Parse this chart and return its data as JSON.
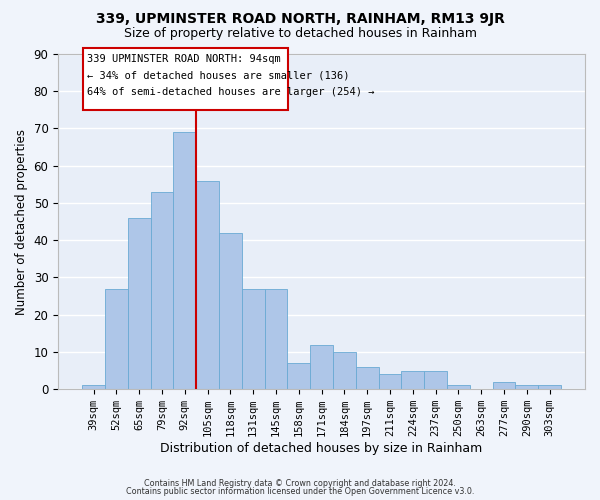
{
  "title": "339, UPMINSTER ROAD NORTH, RAINHAM, RM13 9JR",
  "subtitle": "Size of property relative to detached houses in Rainham",
  "xlabel": "Distribution of detached houses by size in Rainham",
  "ylabel": "Number of detached properties",
  "bar_color": "#aec6e8",
  "bar_edge_color": "#6aaad4",
  "background_color": "#e8eef8",
  "grid_color": "#ffffff",
  "categories": [
    "39sqm",
    "52sqm",
    "65sqm",
    "79sqm",
    "92sqm",
    "105sqm",
    "118sqm",
    "131sqm",
    "145sqm",
    "158sqm",
    "171sqm",
    "184sqm",
    "197sqm",
    "211sqm",
    "224sqm",
    "237sqm",
    "250sqm",
    "263sqm",
    "277sqm",
    "290sqm",
    "303sqm"
  ],
  "values": [
    1,
    27,
    46,
    53,
    69,
    56,
    42,
    27,
    27,
    7,
    12,
    10,
    6,
    4,
    5,
    5,
    1,
    0,
    2,
    1,
    1
  ],
  "ylim": [
    0,
    90
  ],
  "yticks": [
    0,
    10,
    20,
    30,
    40,
    50,
    60,
    70,
    80,
    90
  ],
  "vline_color": "#cc0000",
  "annotation_title": "339 UPMINSTER ROAD NORTH: 94sqm",
  "annotation_line2": "← 34% of detached houses are smaller (136)",
  "annotation_line3": "64% of semi-detached houses are larger (254) →",
  "footer1": "Contains HM Land Registry data © Crown copyright and database right 2024.",
  "footer2": "Contains public sector information licensed under the Open Government Licence v3.0."
}
